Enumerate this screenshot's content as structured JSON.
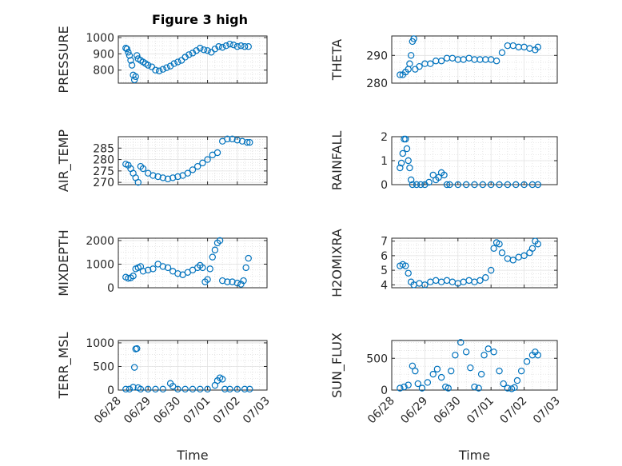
{
  "figure": {
    "title": "Figure 3 high"
  },
  "x_axis": {
    "label": "Time",
    "range": [
      "2024-06-28",
      "2024-07-03"
    ],
    "tick_labels": [
      "06/28",
      "06/29",
      "06/30",
      "07/01",
      "07/02",
      "07/03"
    ],
    "ticks": [
      "2024-06-28",
      "2024-06-29",
      "2024-06-30",
      "2024-07-01",
      "2024-07-02",
      "2024-07-03"
    ]
  },
  "marker_color": "#0072BD",
  "chart_data": [
    {
      "type": "scatter",
      "ylabel": "PRESSURE",
      "ylim": [
        720,
        1010
      ],
      "yticks": [
        800,
        900,
        1000
      ],
      "ytick_labels": [
        "800",
        "900",
        "1000"
      ],
      "grid": true,
      "x": [
        "2024-06-28T06:00",
        "2024-06-28T07:00",
        "2024-06-28T08:00",
        "2024-06-28T09:00",
        "2024-06-28T10:00",
        "2024-06-28T11:00",
        "2024-06-28T12:00",
        "2024-06-28T13:00",
        "2024-06-28T14:00",
        "2024-06-28T15:00",
        "2024-06-28T16:00",
        "2024-06-28T18:00",
        "2024-06-28T20:00",
        "2024-06-28T22:00",
        "2024-06-29T00:00",
        "2024-06-29T03:00",
        "2024-06-29T06:00",
        "2024-06-29T09:00",
        "2024-06-29T12:00",
        "2024-06-29T15:00",
        "2024-06-29T18:00",
        "2024-06-29T21:00",
        "2024-06-30T00:00",
        "2024-06-30T03:00",
        "2024-06-30T06:00",
        "2024-06-30T09:00",
        "2024-06-30T12:00",
        "2024-06-30T15:00",
        "2024-06-30T18:00",
        "2024-06-30T21:00",
        "2024-07-01T00:00",
        "2024-07-01T03:00",
        "2024-07-01T06:00",
        "2024-07-01T09:00",
        "2024-07-01T12:00",
        "2024-07-01T15:00",
        "2024-07-01T18:00",
        "2024-07-01T21:00",
        "2024-07-02T00:00",
        "2024-07-02T03:00",
        "2024-07-02T06:00",
        "2024-07-02T09:00"
      ],
      "y": [
        935,
        930,
        910,
        890,
        860,
        830,
        770,
        740,
        760,
        890,
        870,
        860,
        850,
        840,
        830,
        820,
        800,
        795,
        805,
        815,
        825,
        840,
        850,
        860,
        880,
        895,
        905,
        920,
        935,
        925,
        920,
        910,
        930,
        945,
        940,
        950,
        960,
        955,
        945,
        950,
        945,
        945
      ]
    },
    {
      "type": "scatter",
      "ylabel": "THETA",
      "ylim": [
        280,
        297
      ],
      "yticks": [
        280,
        290
      ],
      "ytick_labels": [
        "280",
        "290"
      ],
      "grid": true,
      "x": [
        "2024-06-28T06:00",
        "2024-06-28T08:00",
        "2024-06-28T10:00",
        "2024-06-28T12:00",
        "2024-06-28T13:00",
        "2024-06-28T14:00",
        "2024-06-28T15:00",
        "2024-06-28T16:00",
        "2024-06-28T17:00",
        "2024-06-28T20:00",
        "2024-06-29T00:00",
        "2024-06-29T04:00",
        "2024-06-29T08:00",
        "2024-06-29T12:00",
        "2024-06-29T16:00",
        "2024-06-29T20:00",
        "2024-06-30T00:00",
        "2024-06-30T04:00",
        "2024-06-30T08:00",
        "2024-06-30T12:00",
        "2024-06-30T16:00",
        "2024-06-30T20:00",
        "2024-07-01T00:00",
        "2024-07-01T04:00",
        "2024-07-01T08:00",
        "2024-07-01T12:00",
        "2024-07-01T16:00",
        "2024-07-01T20:00",
        "2024-07-02T00:00",
        "2024-07-02T04:00",
        "2024-07-02T08:00",
        "2024-07-02T10:00"
      ],
      "y": [
        283,
        283,
        284,
        285,
        287,
        290,
        295,
        296,
        285,
        286,
        287,
        287,
        288,
        288,
        289,
        289,
        288.5,
        288.5,
        289,
        288.5,
        288.5,
        288.5,
        288.5,
        288,
        291,
        293.5,
        293.5,
        293,
        293,
        292.5,
        292,
        293
      ]
    },
    {
      "type": "scatter",
      "ylabel": "AIR_TEMP",
      "ylim": [
        269,
        290
      ],
      "yticks": [
        270,
        275,
        280,
        285
      ],
      "ytick_labels": [
        "270",
        "275",
        "280",
        "285"
      ],
      "grid": true,
      "x": [
        "2024-06-28T06:00",
        "2024-06-28T08:00",
        "2024-06-28T10:00",
        "2024-06-28T12:00",
        "2024-06-28T14:00",
        "2024-06-28T16:00",
        "2024-06-28T18:00",
        "2024-06-28T20:00",
        "2024-06-29T00:00",
        "2024-06-29T04:00",
        "2024-06-29T08:00",
        "2024-06-29T12:00",
        "2024-06-29T16:00",
        "2024-06-29T20:00",
        "2024-06-30T00:00",
        "2024-06-30T04:00",
        "2024-06-30T08:00",
        "2024-06-30T12:00",
        "2024-06-30T16:00",
        "2024-06-30T20:00",
        "2024-07-01T00:00",
        "2024-07-01T04:00",
        "2024-07-01T08:00",
        "2024-07-01T12:00",
        "2024-07-01T16:00",
        "2024-07-01T20:00",
        "2024-07-02T00:00",
        "2024-07-02T04:00",
        "2024-07-02T08:00",
        "2024-07-02T10:00"
      ],
      "y": [
        278,
        277.5,
        276,
        274,
        272,
        270,
        277,
        276,
        274,
        273,
        272.5,
        272,
        271.5,
        272,
        272.5,
        273,
        274,
        275.5,
        277,
        278.5,
        280,
        282,
        283,
        288,
        289,
        289,
        288.5,
        288,
        287.5,
        287.5
      ]
    },
    {
      "type": "scatter",
      "ylabel": "RAINFALL",
      "ylim": [
        0,
        2
      ],
      "yticks": [
        0,
        1,
        2
      ],
      "ytick_labels": [
        "0",
        "1",
        "2"
      ],
      "grid": true,
      "x": [
        "2024-06-28T06:00",
        "2024-06-28T07:00",
        "2024-06-28T08:00",
        "2024-06-28T09:00",
        "2024-06-28T10:00",
        "2024-06-28T11:00",
        "2024-06-28T12:00",
        "2024-06-28T13:00",
        "2024-06-28T14:00",
        "2024-06-28T15:00",
        "2024-06-28T18:00",
        "2024-06-28T21:00",
        "2024-06-29T00:00",
        "2024-06-29T03:00",
        "2024-06-29T06:00",
        "2024-06-29T08:00",
        "2024-06-29T10:00",
        "2024-06-29T12:00",
        "2024-06-29T14:00",
        "2024-06-29T16:00",
        "2024-06-29T18:00",
        "2024-06-30T00:00",
        "2024-06-30T06:00",
        "2024-06-30T12:00",
        "2024-06-30T18:00",
        "2024-07-01T00:00",
        "2024-07-01T06:00",
        "2024-07-01T12:00",
        "2024-07-01T18:00",
        "2024-07-02T00:00",
        "2024-07-02T06:00",
        "2024-07-02T10:00"
      ],
      "y": [
        0.7,
        0.9,
        1.3,
        1.9,
        1.9,
        1.5,
        1.0,
        0.7,
        0.2,
        0,
        0,
        0,
        0,
        0.1,
        0.4,
        0.2,
        0.3,
        0.5,
        0.4,
        0,
        0,
        0,
        0,
        0,
        0,
        0,
        0,
        0,
        0,
        0,
        0,
        0
      ]
    },
    {
      "type": "scatter",
      "ylabel": "MIXDEPTH",
      "ylim": [
        0,
        2100
      ],
      "yticks": [
        0,
        1000,
        2000
      ],
      "ytick_labels": [
        "0",
        "1000",
        "2000"
      ],
      "grid": true,
      "x": [
        "2024-06-28T06:00",
        "2024-06-28T08:00",
        "2024-06-28T10:00",
        "2024-06-28T12:00",
        "2024-06-28T14:00",
        "2024-06-28T16:00",
        "2024-06-28T18:00",
        "2024-06-28T20:00",
        "2024-06-29T00:00",
        "2024-06-29T04:00",
        "2024-06-29T08:00",
        "2024-06-29T12:00",
        "2024-06-29T16:00",
        "2024-06-29T20:00",
        "2024-06-30T00:00",
        "2024-06-30T04:00",
        "2024-06-30T08:00",
        "2024-06-30T12:00",
        "2024-06-30T16:00",
        "2024-06-30T18:00",
        "2024-06-30T20:00",
        "2024-06-30T22:00",
        "2024-07-01T00:00",
        "2024-07-01T02:00",
        "2024-07-01T04:00",
        "2024-07-01T06:00",
        "2024-07-01T08:00",
        "2024-07-01T10:00",
        "2024-07-01T12:00",
        "2024-07-01T16:00",
        "2024-07-01T20:00",
        "2024-07-02T00:00",
        "2024-07-02T03:00",
        "2024-07-02T05:00",
        "2024-07-02T07:00",
        "2024-07-02T09:00"
      ],
      "y": [
        450,
        400,
        420,
        500,
        800,
        850,
        900,
        700,
        750,
        800,
        1000,
        900,
        850,
        700,
        600,
        550,
        650,
        750,
        850,
        950,
        850,
        250,
        350,
        800,
        1300,
        1600,
        1900,
        2000,
        300,
        250,
        250,
        200,
        150,
        300,
        850,
        1250
      ]
    },
    {
      "type": "scatter",
      "ylabel": "H2OMIXRA",
      "ylim": [
        3.8,
        7.2
      ],
      "yticks": [
        4,
        5,
        6,
        7
      ],
      "ytick_labels": [
        "4",
        "5",
        "6",
        "7"
      ],
      "grid": true,
      "x": [
        "2024-06-28T06:00",
        "2024-06-28T08:00",
        "2024-06-28T10:00",
        "2024-06-28T12:00",
        "2024-06-28T14:00",
        "2024-06-28T16:00",
        "2024-06-28T20:00",
        "2024-06-29T00:00",
        "2024-06-29T04:00",
        "2024-06-29T08:00",
        "2024-06-29T12:00",
        "2024-06-29T16:00",
        "2024-06-29T20:00",
        "2024-06-30T00:00",
        "2024-06-30T04:00",
        "2024-06-30T08:00",
        "2024-06-30T12:00",
        "2024-06-30T16:00",
        "2024-06-30T20:00",
        "2024-07-01T00:00",
        "2024-07-01T02:00",
        "2024-07-01T04:00",
        "2024-07-01T06:00",
        "2024-07-01T08:00",
        "2024-07-01T12:00",
        "2024-07-01T16:00",
        "2024-07-01T20:00",
        "2024-07-02T00:00",
        "2024-07-02T04:00",
        "2024-07-02T06:00",
        "2024-07-02T08:00",
        "2024-07-02T10:00"
      ],
      "y": [
        5.3,
        5.4,
        5.3,
        4.8,
        4.2,
        4.0,
        4.1,
        4.0,
        4.2,
        4.3,
        4.2,
        4.3,
        4.2,
        4.1,
        4.2,
        4.3,
        4.2,
        4.3,
        4.5,
        5.0,
        6.5,
        6.9,
        6.8,
        6.2,
        5.8,
        5.7,
        5.9,
        6.0,
        6.2,
        6.5,
        7.0,
        6.8
      ]
    },
    {
      "type": "scatter",
      "ylabel": "TERR_MSL",
      "ylim": [
        0,
        1050
      ],
      "yticks": [
        0,
        500,
        1000
      ],
      "ytick_labels": [
        "0",
        "500",
        "1000"
      ],
      "grid": true,
      "x": [
        "2024-06-28T06:00",
        "2024-06-28T09:00",
        "2024-06-28T12:00",
        "2024-06-28T13:00",
        "2024-06-28T14:00",
        "2024-06-28T15:00",
        "2024-06-28T16:00",
        "2024-06-28T18:00",
        "2024-06-29T00:00",
        "2024-06-29T06:00",
        "2024-06-29T12:00",
        "2024-06-29T18:00",
        "2024-06-29T20:00",
        "2024-06-30T00:00",
        "2024-06-30T06:00",
        "2024-06-30T12:00",
        "2024-06-30T18:00",
        "2024-07-01T00:00",
        "2024-07-01T06:00",
        "2024-07-01T08:00",
        "2024-07-01T10:00",
        "2024-07-01T12:00",
        "2024-07-01T14:00",
        "2024-07-01T18:00",
        "2024-07-02T00:00",
        "2024-07-02T06:00",
        "2024-07-02T10:00"
      ],
      "y": [
        20,
        20,
        60,
        480,
        870,
        880,
        50,
        20,
        20,
        20,
        20,
        140,
        80,
        20,
        20,
        20,
        20,
        20,
        100,
        200,
        260,
        230,
        20,
        20,
        20,
        20,
        20
      ]
    },
    {
      "type": "scatter",
      "ylabel": "SUN_FLUX",
      "ylim": [
        0,
        780
      ],
      "yticks": [
        0,
        500
      ],
      "ytick_labels": [
        "0",
        "500"
      ],
      "grid": true,
      "x": [
        "2024-06-28T06:00",
        "2024-06-28T09:00",
        "2024-06-28T12:00",
        "2024-06-28T15:00",
        "2024-06-28T17:00",
        "2024-06-28T19:00",
        "2024-06-28T22:00",
        "2024-06-29T02:00",
        "2024-06-29T06:00",
        "2024-06-29T09:00",
        "2024-06-29T12:00",
        "2024-06-29T15:00",
        "2024-06-29T17:00",
        "2024-06-29T19:00",
        "2024-06-29T22:00",
        "2024-06-30T02:00",
        "2024-06-30T06:00",
        "2024-06-30T09:00",
        "2024-06-30T12:00",
        "2024-06-30T15:00",
        "2024-06-30T17:00",
        "2024-06-30T19:00",
        "2024-06-30T22:00",
        "2024-07-01T02:00",
        "2024-07-01T06:00",
        "2024-07-01T09:00",
        "2024-07-01T12:00",
        "2024-07-01T15:00",
        "2024-07-01T17:00",
        "2024-07-01T19:00",
        "2024-07-01T22:00",
        "2024-07-02T02:00",
        "2024-07-02T06:00",
        "2024-07-02T08:00",
        "2024-07-02T10:00"
      ],
      "y": [
        30,
        50,
        80,
        380,
        300,
        100,
        30,
        120,
        250,
        330,
        200,
        50,
        30,
        300,
        550,
        750,
        600,
        350,
        50,
        30,
        250,
        550,
        650,
        600,
        300,
        100,
        30,
        20,
        40,
        150,
        300,
        450,
        550,
        600,
        550
      ]
    }
  ]
}
